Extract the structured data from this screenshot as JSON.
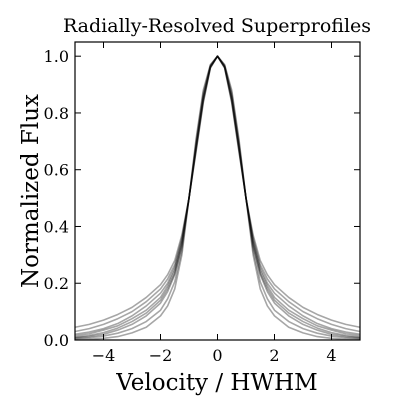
{
  "chart_data": {
    "type": "line",
    "title": "Radially-Resolved Superprofiles",
    "xlabel": "Velocity / HWHM",
    "ylabel": "Normalized Flux",
    "xlim": [
      -5,
      5
    ],
    "ylim": [
      0,
      1.05
    ],
    "xticks": [
      -4,
      -2,
      0,
      2,
      4
    ],
    "xtick_labels": [
      "−4",
      "−2",
      "0",
      "2",
      "4"
    ],
    "yticks": [
      0.0,
      0.2,
      0.4,
      0.6,
      0.8,
      1.0
    ],
    "ytick_labels": [
      "0.0",
      "0.2",
      "0.4",
      "0.6",
      "0.8",
      "1.0"
    ],
    "grid": false,
    "line_color": "#000000",
    "series_note": "Many overlaid semi-transparent superprofiles, each normalized to peak 1 at 0 and half maximum at ±1",
    "x": [
      -5,
      -4.5,
      -4,
      -3.5,
      -3,
      -2.5,
      -2,
      -1.75,
      -1.5,
      -1.25,
      -1,
      -0.75,
      -0.5,
      -0.25,
      0,
      0.25,
      0.5,
      0.75,
      1,
      1.25,
      1.5,
      1.75,
      2,
      2.5,
      3,
      3.5,
      4,
      4.5,
      5
    ],
    "series": [
      {
        "values": [
          0.008,
          0.012,
          0.02,
          0.035,
          0.055,
          0.085,
          0.13,
          0.17,
          0.23,
          0.33,
          0.5,
          0.69,
          0.86,
          0.965,
          1.0,
          0.965,
          0.86,
          0.69,
          0.5,
          0.33,
          0.23,
          0.17,
          0.13,
          0.085,
          0.055,
          0.035,
          0.02,
          0.012,
          0.008
        ]
      },
      {
        "values": [
          0.03,
          0.04,
          0.055,
          0.075,
          0.1,
          0.135,
          0.18,
          0.215,
          0.265,
          0.36,
          0.5,
          0.67,
          0.84,
          0.96,
          1.0,
          0.96,
          0.84,
          0.67,
          0.5,
          0.36,
          0.265,
          0.215,
          0.18,
          0.135,
          0.1,
          0.075,
          0.055,
          0.04,
          0.03
        ]
      },
      {
        "values": [
          0.002,
          0.003,
          0.006,
          0.012,
          0.025,
          0.045,
          0.085,
          0.12,
          0.18,
          0.3,
          0.5,
          0.71,
          0.88,
          0.97,
          1.0,
          0.97,
          0.88,
          0.71,
          0.5,
          0.3,
          0.18,
          0.12,
          0.085,
          0.045,
          0.025,
          0.012,
          0.006,
          0.003,
          0.002
        ]
      },
      {
        "values": [
          0.015,
          0.022,
          0.035,
          0.05,
          0.075,
          0.105,
          0.15,
          0.19,
          0.245,
          0.345,
          0.5,
          0.68,
          0.85,
          0.962,
          1.0,
          0.962,
          0.85,
          0.68,
          0.5,
          0.345,
          0.245,
          0.19,
          0.15,
          0.105,
          0.075,
          0.05,
          0.035,
          0.022,
          0.015
        ]
      },
      {
        "values": [
          0.045,
          0.055,
          0.07,
          0.09,
          0.115,
          0.15,
          0.195,
          0.23,
          0.28,
          0.37,
          0.5,
          0.665,
          0.835,
          0.958,
          1.0,
          0.958,
          0.835,
          0.665,
          0.5,
          0.37,
          0.28,
          0.23,
          0.195,
          0.15,
          0.115,
          0.09,
          0.07,
          0.055,
          0.045
        ]
      },
      {
        "values": [
          0.005,
          0.008,
          0.014,
          0.024,
          0.04,
          0.065,
          0.105,
          0.145,
          0.205,
          0.315,
          0.5,
          0.7,
          0.87,
          0.968,
          1.0,
          0.968,
          0.87,
          0.7,
          0.5,
          0.315,
          0.205,
          0.145,
          0.105,
          0.065,
          0.04,
          0.024,
          0.014,
          0.008,
          0.005
        ]
      },
      {
        "values": [
          0.02,
          0.028,
          0.04,
          0.058,
          0.085,
          0.12,
          0.165,
          0.2,
          0.255,
          0.35,
          0.5,
          0.675,
          0.845,
          0.961,
          1.0,
          0.961,
          0.845,
          0.675,
          0.5,
          0.35,
          0.255,
          0.2,
          0.165,
          0.12,
          0.085,
          0.058,
          0.04,
          0.028,
          0.02
        ]
      },
      {
        "values": [
          0.01,
          0.016,
          0.026,
          0.042,
          0.065,
          0.095,
          0.14,
          0.18,
          0.235,
          0.335,
          0.5,
          0.685,
          0.855,
          0.964,
          1.0,
          0.964,
          0.855,
          0.685,
          0.5,
          0.335,
          0.235,
          0.18,
          0.14,
          0.095,
          0.065,
          0.042,
          0.026,
          0.016,
          0.01
        ]
      }
    ]
  }
}
